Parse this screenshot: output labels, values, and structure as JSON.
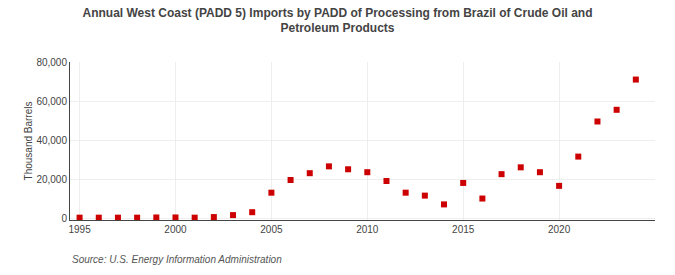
{
  "chart_data": {
    "type": "scatter",
    "title": "Annual West Coast (PADD 5) Imports by PADD of Processing from Brazil of Crude Oil and\nPetroleum Products",
    "ylabel": "Thousand Barrels",
    "annotations": [
      "Source: U.S. Energy Information Administration"
    ],
    "color": "#cc0000",
    "marker": "square",
    "grid": true,
    "xlim": [
      1994.5,
      2025
    ],
    "ylim": [
      -1000,
      80000
    ],
    "xticks": [
      1995,
      2000,
      2005,
      2010,
      2015,
      2020
    ],
    "yticks": [
      0,
      {
        "value": 20000,
        "label": "20,000"
      },
      {
        "value": 40000,
        "label": "40,000"
      },
      {
        "value": 60000,
        "label": "60,000"
      },
      {
        "value": 80000,
        "label": "80,000"
      }
    ],
    "x": [
      1995,
      1996,
      1997,
      1998,
      1999,
      2000,
      2001,
      2002,
      2003,
      2004,
      2005,
      2006,
      2007,
      2008,
      2009,
      2010,
      2011,
      2012,
      2013,
      2014,
      2015,
      2016,
      2017,
      2018,
      2019,
      2020,
      2021,
      2022,
      2023,
      2024
    ],
    "values": [
      200,
      200,
      200,
      200,
      300,
      300,
      200,
      500,
      1500,
      3000,
      13000,
      19500,
      23000,
      26500,
      25000,
      23500,
      19000,
      13000,
      11500,
      7000,
      18000,
      10000,
      22500,
      26000,
      23500,
      16500,
      31500,
      49500,
      55500,
      71000
    ]
  }
}
